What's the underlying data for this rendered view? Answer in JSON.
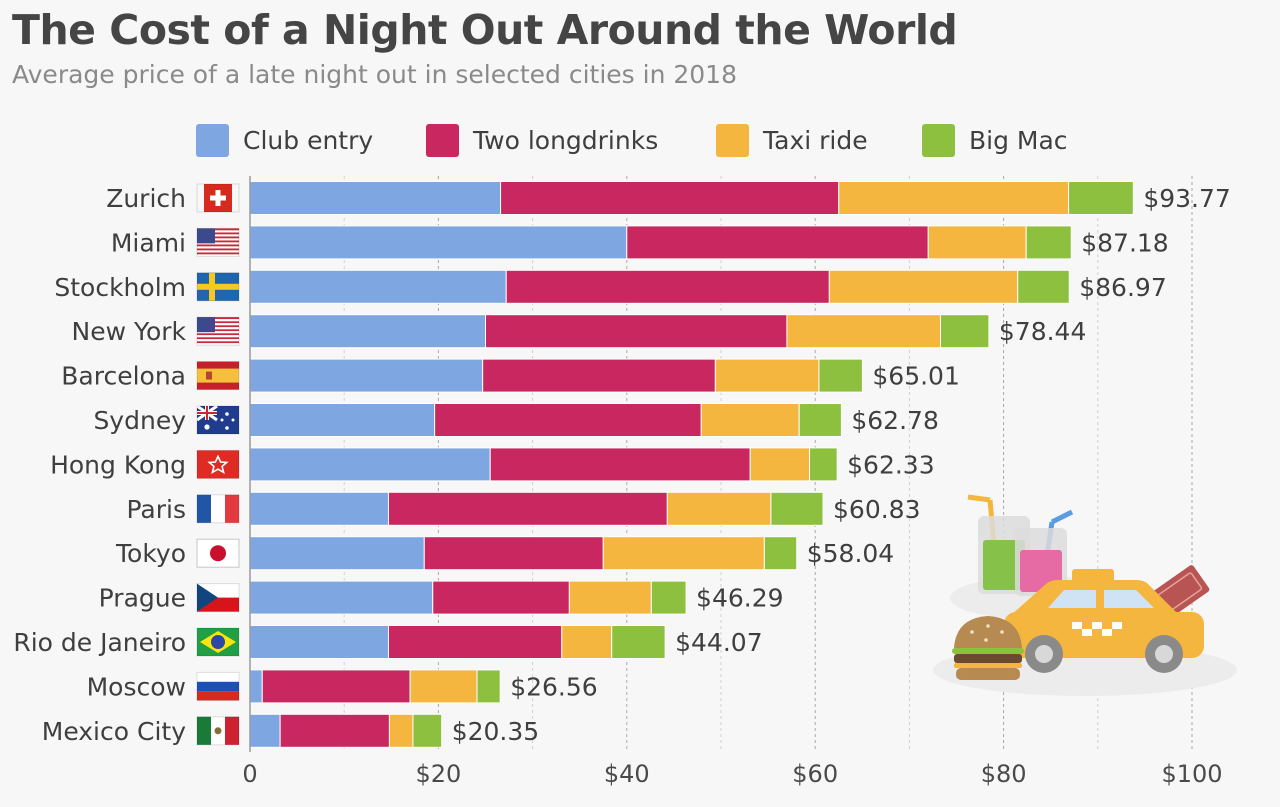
{
  "title": "The Cost of a Night Out Around the World",
  "subtitle": "Average price of a late night out in selected cities in 2018",
  "colors": {
    "club_entry": "#7ea6e0",
    "two_longdrinks": "#c8285f",
    "taxi_ride": "#f4b63f",
    "big_mac": "#8cc03e"
  },
  "legend": [
    "Club entry",
    "Two longdrinks",
    "Taxi ride",
    "Big Mac"
  ],
  "chart_data": {
    "type": "bar",
    "orientation": "horizontal",
    "stacked": true,
    "title": "The Cost of a Night Out Around the World",
    "subtitle": "Average price of a late night out in selected cities in 2018",
    "xlabel": "",
    "ylabel": "",
    "xlim": [
      0,
      100
    ],
    "xticks": [
      0,
      20,
      40,
      60,
      80,
      100
    ],
    "xtick_labels": [
      "0",
      "$20",
      "$40",
      "$60",
      "$80",
      "$100"
    ],
    "legend_position": "top",
    "categories": [
      "Zurich",
      "Miami",
      "Stockholm",
      "New York",
      "Barcelona",
      "Sydney",
      "Hong Kong",
      "Paris",
      "Tokyo",
      "Prague",
      "Rio de Janeiro",
      "Moscow",
      "Mexico City"
    ],
    "flags": [
      "swiss-flag-icon",
      "us-flag-icon",
      "swedish-flag-icon",
      "us-flag-icon",
      "spanish-flag-icon",
      "australian-flag-icon",
      "hong-kong-flag-icon",
      "french-flag-icon",
      "japanese-flag-icon",
      "czech-flag-icon",
      "brazilian-flag-icon",
      "russian-flag-icon",
      "mexican-flag-icon"
    ],
    "series": [
      {
        "name": "Club entry",
        "values": [
          26.6,
          40.0,
          27.2,
          25.0,
          24.7,
          19.6,
          25.5,
          14.7,
          18.5,
          19.4,
          14.7,
          1.3,
          3.2
        ]
      },
      {
        "name": "Two longdrinks",
        "values": [
          35.9,
          32.0,
          34.3,
          32.0,
          24.7,
          28.3,
          27.6,
          29.6,
          19.0,
          14.5,
          18.4,
          15.7,
          11.6
        ]
      },
      {
        "name": "Taxi ride",
        "values": [
          24.4,
          10.4,
          20.0,
          16.3,
          11.0,
          10.4,
          6.3,
          11.0,
          17.1,
          8.7,
          5.3,
          7.1,
          2.5
        ]
      },
      {
        "name": "Big Mac",
        "values": [
          6.87,
          4.78,
          5.47,
          5.14,
          4.61,
          4.48,
          2.93,
          5.53,
          3.44,
          3.69,
          5.67,
          2.46,
          3.05
        ]
      }
    ],
    "totals": [
      93.77,
      87.18,
      86.97,
      78.44,
      65.01,
      62.78,
      62.33,
      60.83,
      58.04,
      46.29,
      44.07,
      26.56,
      20.35
    ],
    "total_labels": [
      "$93.77",
      "$87.18",
      "$86.97",
      "$78.44",
      "$65.01",
      "$62.78",
      "$62.33",
      "$60.83",
      "$58.04",
      "$46.29",
      "$44.07",
      "$26.56",
      "$20.35"
    ]
  }
}
